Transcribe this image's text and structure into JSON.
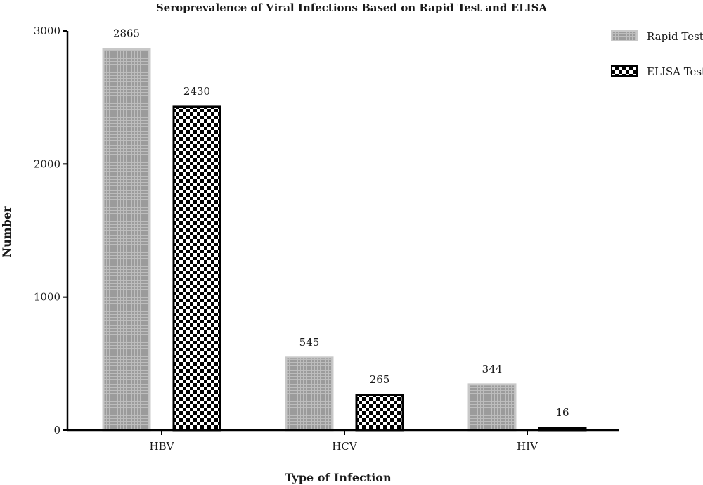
{
  "chart_data": {
    "type": "bar",
    "title": "Seroprevalence of Viral Infections Based on Rapid Test and ELISA",
    "xlabel": "Type of Infection",
    "ylabel": "Number",
    "categories": [
      "HBV",
      "HCV",
      "HIV"
    ],
    "series": [
      {
        "name": "Rapid Test",
        "values": [
          2865,
          545,
          344
        ],
        "labels": [
          "2865",
          "545",
          "344"
        ],
        "pattern": "grid",
        "color": "#aaaaaa"
      },
      {
        "name": "ELISA Test",
        "values": [
          2430,
          265,
          16
        ],
        "labels": [
          "2430",
          "265",
          "16"
        ],
        "pattern": "checker",
        "color": "#000000"
      }
    ],
    "ylim": [
      0,
      3000
    ],
    "yticks": [
      0,
      1000,
      2000,
      3000
    ],
    "legend": "top-right",
    "grid": false
  }
}
